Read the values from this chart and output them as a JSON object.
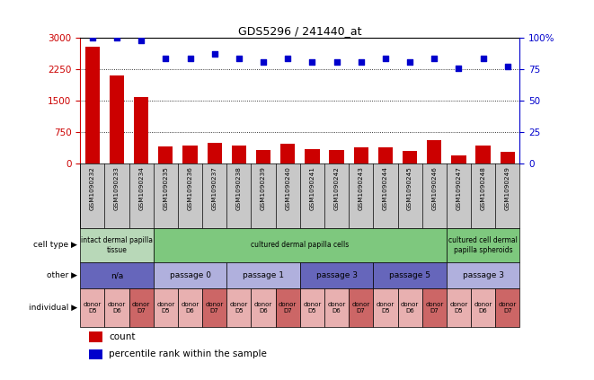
{
  "title": "GDS5296 / 241440_at",
  "samples": [
    "GSM1090232",
    "GSM1090233",
    "GSM1090234",
    "GSM1090235",
    "GSM1090236",
    "GSM1090237",
    "GSM1090238",
    "GSM1090239",
    "GSM1090240",
    "GSM1090241",
    "GSM1090242",
    "GSM1090243",
    "GSM1090244",
    "GSM1090245",
    "GSM1090246",
    "GSM1090247",
    "GSM1090248",
    "GSM1090249"
  ],
  "counts": [
    2800,
    2100,
    1580,
    410,
    430,
    500,
    420,
    330,
    470,
    350,
    310,
    380,
    380,
    300,
    560,
    200,
    420,
    280
  ],
  "percentiles": [
    100,
    100,
    98,
    84,
    84,
    87,
    84,
    81,
    84,
    81,
    81,
    81,
    84,
    81,
    84,
    76,
    84,
    77
  ],
  "bar_color": "#cc0000",
  "dot_color": "#0000cc",
  "ylim_left": [
    0,
    3000
  ],
  "ylim_right": [
    0,
    100
  ],
  "yticks_left": [
    0,
    750,
    1500,
    2250,
    3000
  ],
  "yticks_right": [
    0,
    25,
    50,
    75,
    100
  ],
  "cell_type_labels": [
    {
      "label": "intact dermal papilla\ntissue",
      "start": 0,
      "end": 3,
      "color": "#b8d8b8"
    },
    {
      "label": "cultured dermal papilla cells",
      "start": 3,
      "end": 15,
      "color": "#7ec87e"
    },
    {
      "label": "cultured cell dermal\npapilla spheroids",
      "start": 15,
      "end": 18,
      "color": "#7ec87e"
    }
  ],
  "other_labels": [
    {
      "label": "n/a",
      "start": 0,
      "end": 3,
      "color": "#6666bb"
    },
    {
      "label": "passage 0",
      "start": 3,
      "end": 6,
      "color": "#b0b0dd"
    },
    {
      "label": "passage 1",
      "start": 6,
      "end": 9,
      "color": "#b0b0dd"
    },
    {
      "label": "passage 3",
      "start": 9,
      "end": 12,
      "color": "#6666bb"
    },
    {
      "label": "passage 5",
      "start": 12,
      "end": 15,
      "color": "#6666bb"
    },
    {
      "label": "passage 3",
      "start": 15,
      "end": 18,
      "color": "#b0b0dd"
    }
  ],
  "individual_labels": [
    {
      "label": "donor\nD5",
      "start": 0,
      "end": 1,
      "color": "#e8b0b0"
    },
    {
      "label": "donor\nD6",
      "start": 1,
      "end": 2,
      "color": "#e8b0b0"
    },
    {
      "label": "donor\nD7",
      "start": 2,
      "end": 3,
      "color": "#cc6666"
    },
    {
      "label": "donor\nD5",
      "start": 3,
      "end": 4,
      "color": "#e8b0b0"
    },
    {
      "label": "donor\nD6",
      "start": 4,
      "end": 5,
      "color": "#e8b0b0"
    },
    {
      "label": "donor\nD7",
      "start": 5,
      "end": 6,
      "color": "#cc6666"
    },
    {
      "label": "donor\nD5",
      "start": 6,
      "end": 7,
      "color": "#e8b0b0"
    },
    {
      "label": "donor\nD6",
      "start": 7,
      "end": 8,
      "color": "#e8b0b0"
    },
    {
      "label": "donor\nD7",
      "start": 8,
      "end": 9,
      "color": "#cc6666"
    },
    {
      "label": "donor\nD5",
      "start": 9,
      "end": 10,
      "color": "#e8b0b0"
    },
    {
      "label": "donor\nD6",
      "start": 10,
      "end": 11,
      "color": "#e8b0b0"
    },
    {
      "label": "donor\nD7",
      "start": 11,
      "end": 12,
      "color": "#cc6666"
    },
    {
      "label": "donor\nD5",
      "start": 12,
      "end": 13,
      "color": "#e8b0b0"
    },
    {
      "label": "donor\nD6",
      "start": 13,
      "end": 14,
      "color": "#e8b0b0"
    },
    {
      "label": "donor\nD7",
      "start": 14,
      "end": 15,
      "color": "#cc6666"
    },
    {
      "label": "donor\nD5",
      "start": 15,
      "end": 16,
      "color": "#e8b0b0"
    },
    {
      "label": "donor\nD6",
      "start": 16,
      "end": 17,
      "color": "#e8b0b0"
    },
    {
      "label": "donor\nD7",
      "start": 17,
      "end": 18,
      "color": "#cc6666"
    }
  ],
  "row_labels": [
    "cell type",
    "other",
    "individual"
  ],
  "legend_count_label": "count",
  "legend_percentile_label": "percentile rank within the sample",
  "bg_color": "#ffffff",
  "tick_color_left": "#cc0000",
  "tick_color_right": "#0000cc"
}
